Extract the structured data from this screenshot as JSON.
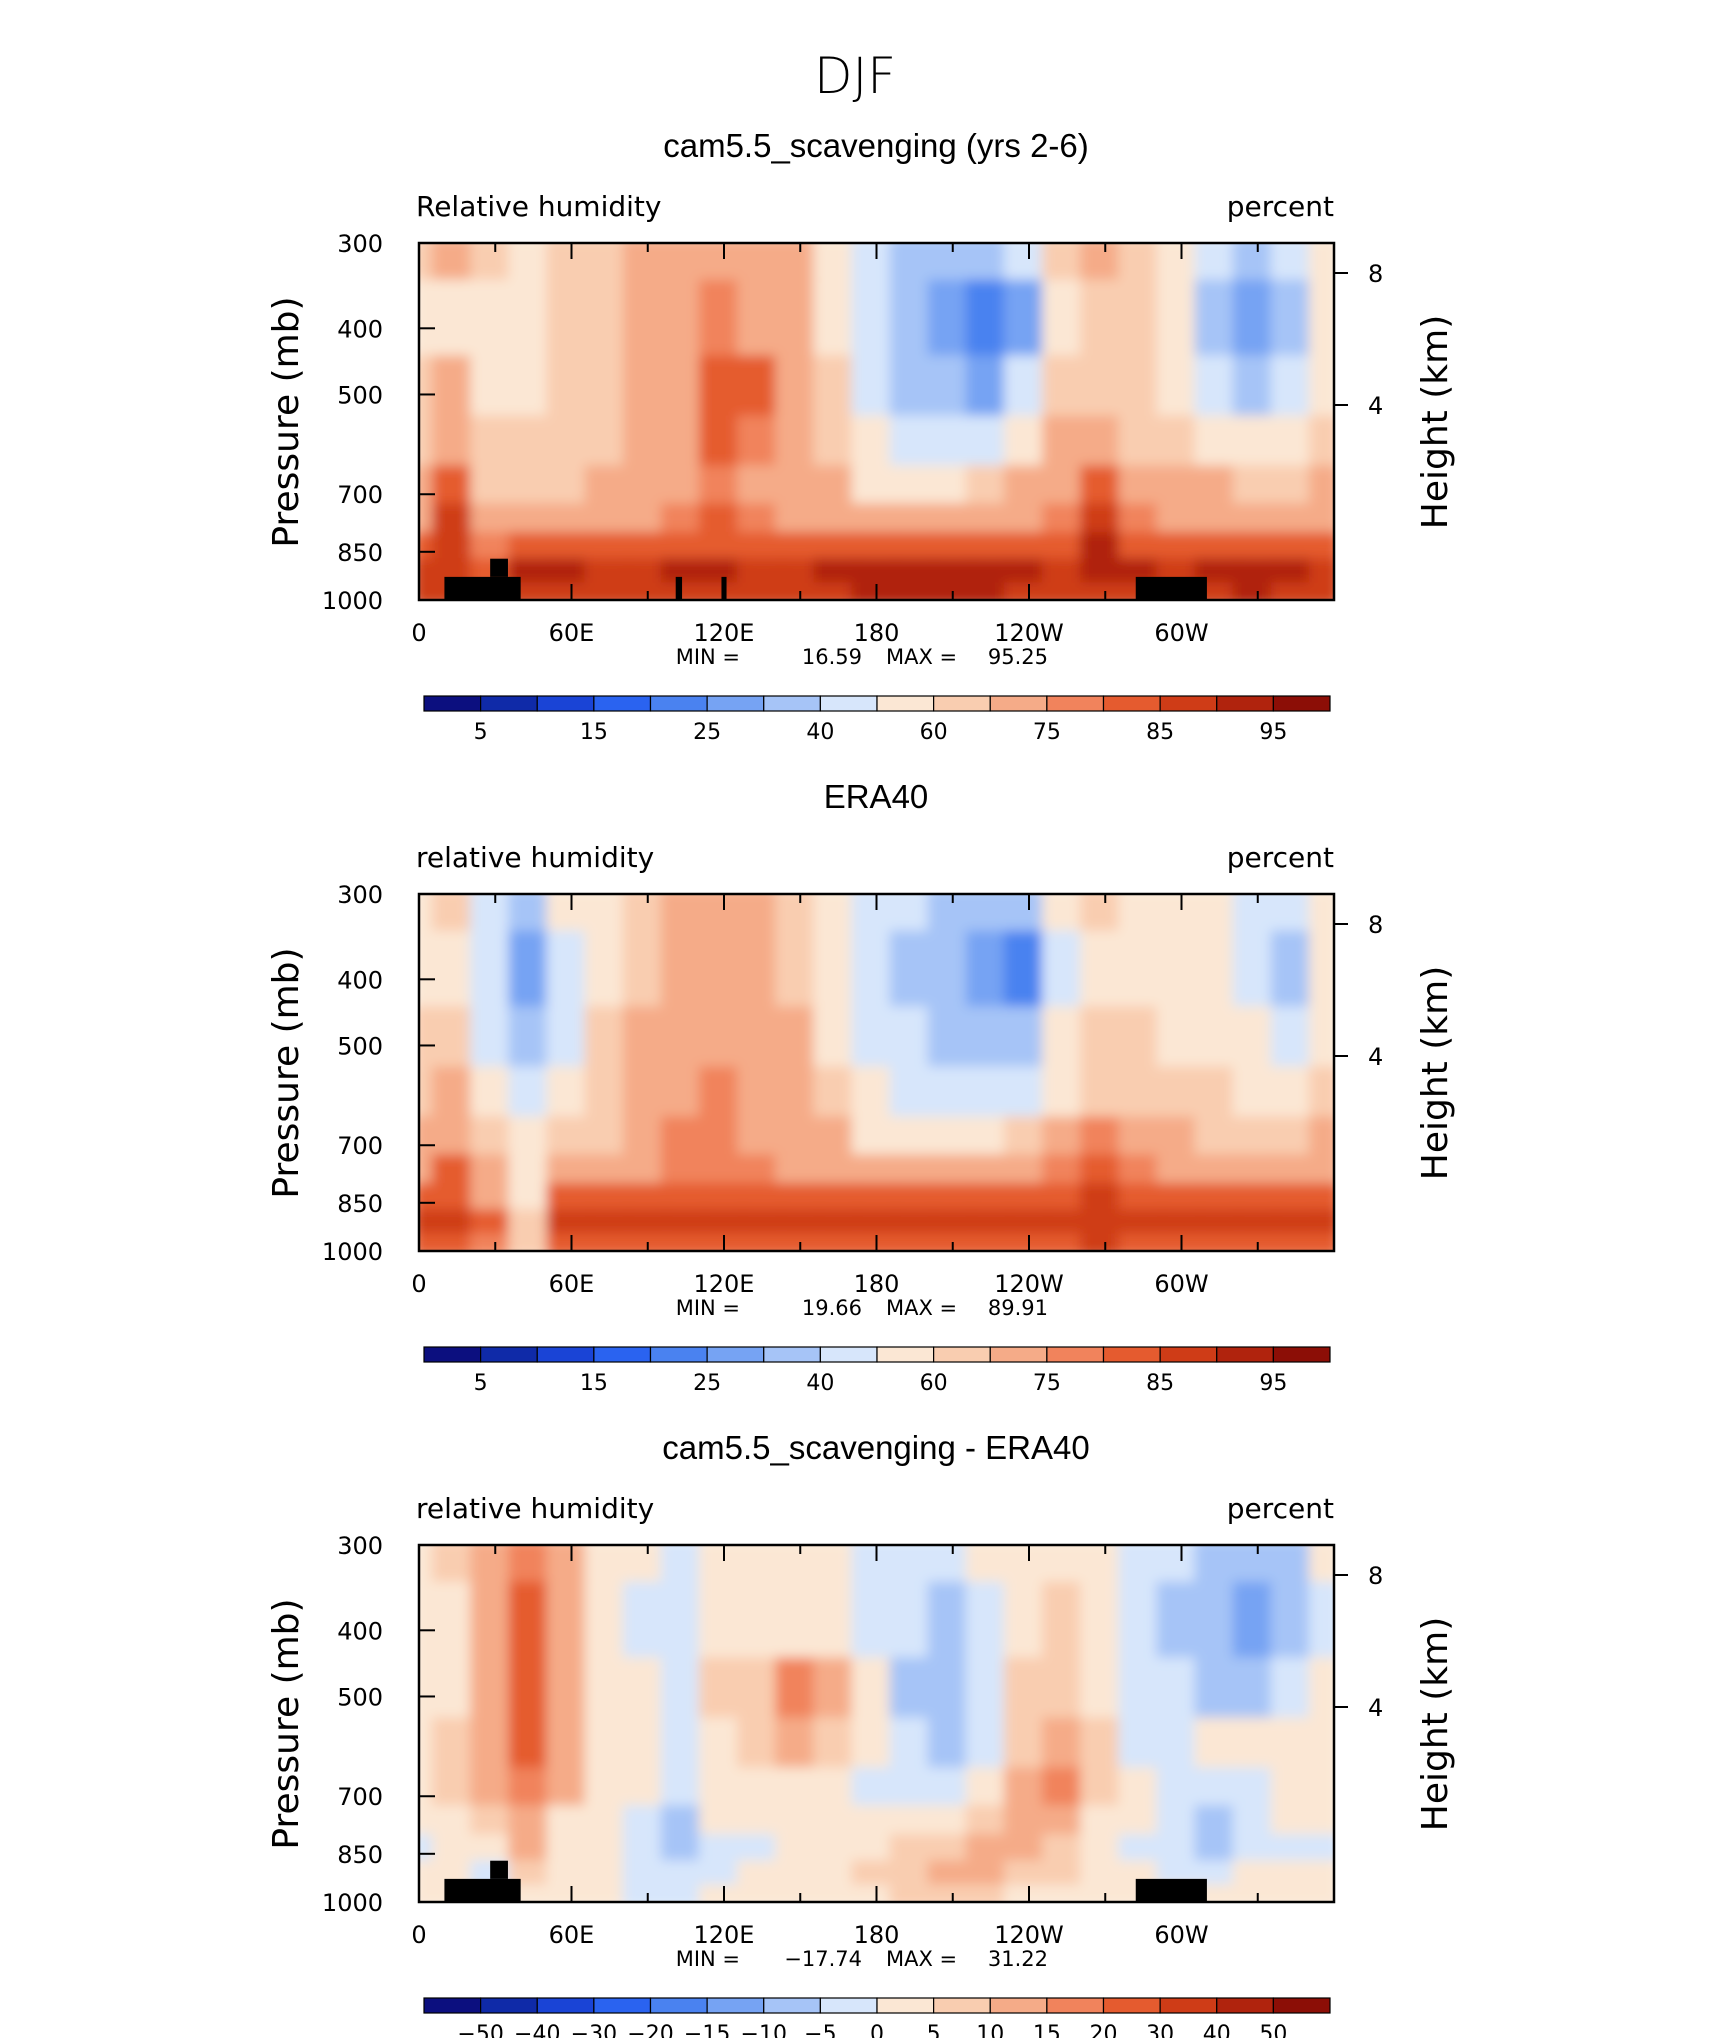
{
  "figure": {
    "title": "DJF",
    "colors": {
      "rh_levels": [
        "#0c0f7f",
        "#0f2aa8",
        "#1a44d6",
        "#2a63f0",
        "#4a82f0",
        "#76a3f3",
        "#a6c4f7",
        "#d7e6fb",
        "#fbe7d4",
        "#f9cdb0",
        "#f5ab88",
        "#f1835c",
        "#e55b2f",
        "#cf3c17",
        "#b0230d",
        "#8c0e06"
      ],
      "diff_levels": [
        "#0c0f7f",
        "#0f2aa8",
        "#1a44d6",
        "#2a63f0",
        "#4a82f0",
        "#76a3f3",
        "#a6c4f7",
        "#d7e6fb",
        "#fbe7d4",
        "#f9cdb0",
        "#f5ab88",
        "#f1835c",
        "#e55b2f",
        "#cf3c17",
        "#b0230d",
        "#8c0e06"
      ],
      "topography": "#000000"
    }
  },
  "panels": [
    {
      "title": "cam5.5_scavenging (yrs 2-6)",
      "left_label": "Relative humidity",
      "right_label": "percent",
      "y_axis_title": "Pressure (mb)",
      "right_axis_title": "Height (km)",
      "stats": {
        "min_label": "MIN =",
        "min_value": "16.59",
        "max_label": "MAX =",
        "max_value": "95.25"
      },
      "colorbar_labels": [
        "5",
        "15",
        "25",
        "40",
        "60",
        "75",
        "85",
        "95"
      ]
    },
    {
      "title": "ERA40",
      "left_label": "relative humidity",
      "right_label": "percent",
      "y_axis_title": "Pressure (mb)",
      "right_axis_title": "Height (km)",
      "stats": {
        "min_label": "MIN =",
        "min_value": "19.66",
        "max_label": "MAX =",
        "max_value": "89.91"
      },
      "colorbar_labels": [
        "5",
        "15",
        "25",
        "40",
        "60",
        "75",
        "85",
        "95"
      ]
    },
    {
      "title": "cam5.5_scavenging - ERA40",
      "left_label": "relative humidity",
      "right_label": "percent",
      "y_axis_title": "Pressure (mb)",
      "right_axis_title": "Height (km)",
      "stats": {
        "min_label": "MIN =",
        "min_value": "−17.74",
        "max_label": "MAX =",
        "max_value": "31.22"
      },
      "colorbar_labels": [
        "−50",
        "−40",
        "−30",
        "−20",
        "−15",
        "−10",
        "−5",
        "0",
        "5",
        "10",
        "15",
        "20",
        "30",
        "40",
        "50"
      ]
    }
  ],
  "chart_data": [
    {
      "type": "heatmap",
      "title": "cam5.5_scavenging (yrs 2-6)",
      "variable": "Relative humidity",
      "units": "percent",
      "x_tick_labels": [
        "0",
        "60E",
        "120E",
        "180",
        "120W",
        "60W"
      ],
      "y_tick_labels": [
        "300",
        "400",
        "500",
        "700",
        "850",
        "1000"
      ],
      "y_right_tick_labels": [
        "8",
        "4"
      ],
      "x_lon_range": [
        0,
        360
      ],
      "y_pressure_range": [
        1000,
        300
      ],
      "min": 16.59,
      "max": 95.25,
      "contour_levels": [
        5,
        10,
        15,
        20,
        25,
        30,
        40,
        50,
        60,
        65,
        75,
        80,
        85,
        90,
        95
      ],
      "x_lon": [
        0,
        15,
        30,
        45,
        60,
        75,
        90,
        105,
        120,
        135,
        150,
        165,
        180,
        195,
        210,
        225,
        240,
        255,
        270,
        285,
        300,
        315,
        330,
        345,
        360
      ],
      "y_pressure": [
        300,
        400,
        500,
        600,
        700,
        775,
        850,
        925,
        1000
      ],
      "values": [
        [
          60,
          65,
          62,
          58,
          62,
          64,
          66,
          68,
          72,
          70,
          68,
          55,
          40,
          35,
          32,
          33,
          45,
          62,
          65,
          62,
          55,
          40,
          30,
          40,
          55
        ],
        [
          55,
          58,
          50,
          55,
          60,
          64,
          66,
          68,
          75,
          72,
          68,
          55,
          42,
          35,
          27,
          23,
          28,
          55,
          62,
          60,
          50,
          33,
          25,
          35,
          50
        ],
        [
          62,
          66,
          58,
          58,
          62,
          64,
          66,
          70,
          80,
          80,
          72,
          60,
          45,
          35,
          30,
          28,
          40,
          60,
          64,
          62,
          55,
          40,
          35,
          45,
          58
        ],
        [
          64,
          70,
          62,
          60,
          62,
          64,
          66,
          72,
          80,
          78,
          74,
          62,
          50,
          42,
          40,
          42,
          55,
          66,
          66,
          64,
          62,
          55,
          50,
          55,
          62
        ],
        [
          68,
          82,
          62,
          62,
          63,
          65,
          66,
          74,
          78,
          74,
          70,
          65,
          58,
          55,
          55,
          60,
          66,
          74,
          82,
          72,
          68,
          65,
          62,
          62,
          66
        ],
        [
          74,
          86,
          66,
          70,
          72,
          72,
          72,
          76,
          80,
          76,
          74,
          70,
          66,
          65,
          66,
          70,
          74,
          78,
          88,
          78,
          74,
          72,
          70,
          70,
          74
        ],
        [
          82,
          86,
          75,
          82,
          82,
          80,
          80,
          84,
          84,
          80,
          80,
          80,
          80,
          80,
          80,
          82,
          82,
          84,
          90,
          84,
          82,
          80,
          80,
          80,
          82
        ],
        [
          88,
          88,
          82,
          90,
          90,
          88,
          88,
          90,
          90,
          88,
          88,
          90,
          92,
          92,
          92,
          92,
          90,
          88,
          92,
          90,
          88,
          90,
          92,
          90,
          88
        ],
        [
          86,
          86,
          80,
          88,
          88,
          88,
          88,
          88,
          88,
          88,
          88,
          88,
          90,
          90,
          90,
          90,
          88,
          86,
          88,
          88,
          86,
          88,
          90,
          88,
          86
        ]
      ]
    },
    {
      "type": "heatmap",
      "title": "ERA40",
      "variable": "relative humidity",
      "units": "percent",
      "x_tick_labels": [
        "0",
        "60E",
        "120E",
        "180",
        "120W",
        "60W"
      ],
      "y_tick_labels": [
        "300",
        "400",
        "500",
        "700",
        "850",
        "1000"
      ],
      "y_right_tick_labels": [
        "8",
        "4"
      ],
      "x_lon_range": [
        0,
        360
      ],
      "y_pressure_range": [
        1000,
        300
      ],
      "min": 19.66,
      "max": 89.91,
      "contour_levels": [
        5,
        10,
        15,
        20,
        25,
        30,
        40,
        50,
        60,
        65,
        75,
        80,
        85,
        90,
        95
      ],
      "x_lon": [
        0,
        15,
        30,
        45,
        60,
        75,
        90,
        105,
        120,
        135,
        150,
        165,
        180,
        195,
        210,
        225,
        240,
        255,
        270,
        285,
        300,
        315,
        330,
        345,
        360
      ],
      "y_pressure": [
        300,
        400,
        500,
        600,
        700,
        775,
        850,
        925,
        1000
      ],
      "values": [
        [
          58,
          60,
          45,
          38,
          50,
          58,
          64,
          66,
          66,
          66,
          64,
          55,
          42,
          40,
          38,
          32,
          30,
          50,
          60,
          58,
          55,
          52,
          45,
          40,
          55
        ],
        [
          55,
          58,
          40,
          28,
          45,
          58,
          64,
          66,
          66,
          66,
          64,
          52,
          40,
          35,
          30,
          25,
          22,
          45,
          58,
          56,
          55,
          50,
          42,
          38,
          52
        ],
        [
          60,
          62,
          45,
          30,
          48,
          60,
          66,
          72,
          72,
          72,
          66,
          58,
          44,
          40,
          36,
          30,
          30,
          50,
          62,
          60,
          58,
          55,
          50,
          45,
          58
        ],
        [
          62,
          66,
          56,
          48,
          55,
          62,
          66,
          74,
          76,
          74,
          68,
          62,
          50,
          45,
          42,
          40,
          45,
          56,
          64,
          62,
          60,
          60,
          58,
          55,
          60
        ],
        [
          66,
          74,
          64,
          52,
          62,
          64,
          66,
          76,
          76,
          74,
          70,
          66,
          58,
          55,
          52,
          55,
          60,
          66,
          78,
          68,
          66,
          64,
          62,
          62,
          66
        ],
        [
          74,
          80,
          70,
          55,
          72,
          74,
          74,
          78,
          78,
          76,
          74,
          72,
          68,
          66,
          66,
          68,
          72,
          76,
          84,
          76,
          74,
          72,
          70,
          70,
          74
        ],
        [
          80,
          84,
          74,
          58,
          82,
          82,
          82,
          84,
          84,
          82,
          82,
          82,
          80,
          80,
          80,
          80,
          82,
          84,
          88,
          84,
          84,
          82,
          80,
          80,
          82
        ],
        [
          86,
          86,
          80,
          62,
          86,
          88,
          88,
          88,
          88,
          88,
          88,
          88,
          88,
          86,
          86,
          86,
          86,
          86,
          88,
          86,
          86,
          86,
          86,
          86,
          86
        ],
        [
          84,
          84,
          78,
          60,
          84,
          84,
          84,
          84,
          84,
          84,
          84,
          84,
          84,
          82,
          82,
          84,
          84,
          84,
          86,
          84,
          84,
          84,
          84,
          84,
          84
        ]
      ]
    },
    {
      "type": "heatmap",
      "title": "cam5.5_scavenging - ERA40",
      "variable": "relative humidity",
      "units": "percent",
      "x_tick_labels": [
        "0",
        "60E",
        "120E",
        "180",
        "120W",
        "60W"
      ],
      "y_tick_labels": [
        "300",
        "400",
        "500",
        "700",
        "850",
        "1000"
      ],
      "y_right_tick_labels": [
        "8",
        "4"
      ],
      "x_lon_range": [
        0,
        360
      ],
      "y_pressure_range": [
        1000,
        300
      ],
      "min": -17.74,
      "max": 31.22,
      "contour_levels": [
        -50,
        -40,
        -30,
        -20,
        -15,
        -10,
        -5,
        0,
        5,
        10,
        15,
        20,
        30,
        40,
        50
      ],
      "x_lon": [
        0,
        15,
        30,
        45,
        60,
        75,
        90,
        105,
        120,
        135,
        150,
        165,
        180,
        195,
        210,
        225,
        240,
        255,
        270,
        285,
        300,
        315,
        330,
        345,
        360
      ],
      "y_pressure": [
        300,
        400,
        500,
        600,
        700,
        775,
        850,
        925,
        1000
      ],
      "values": [
        [
          2,
          5,
          12,
          18,
          10,
          3,
          0,
          -2,
          2,
          0,
          2,
          0,
          -4,
          -3,
          -2,
          0,
          2,
          4,
          3,
          -2,
          -5,
          -8,
          -10,
          -6,
          0
        ],
        [
          0,
          2,
          10,
          22,
          12,
          2,
          -2,
          -4,
          2,
          0,
          3,
          2,
          -2,
          -4,
          -6,
          -2,
          3,
          6,
          4,
          -4,
          -6,
          -10,
          -14,
          -8,
          -2
        ],
        [
          2,
          4,
          12,
          22,
          14,
          4,
          2,
          -2,
          5,
          6,
          18,
          12,
          0,
          -6,
          -8,
          -3,
          5,
          8,
          4,
          -3,
          -4,
          -6,
          -8,
          -5,
          2
        ],
        [
          4,
          6,
          10,
          20,
          12,
          4,
          2,
          -4,
          4,
          5,
          10,
          8,
          0,
          -5,
          -8,
          -2,
          8,
          10,
          5,
          -2,
          -3,
          0,
          2,
          2,
          4
        ],
        [
          2,
          8,
          10,
          18,
          10,
          3,
          0,
          -5,
          2,
          4,
          4,
          2,
          -2,
          -4,
          -3,
          4,
          12,
          16,
          6,
          2,
          -2,
          -4,
          -3,
          0,
          2
        ],
        [
          0,
          4,
          8,
          14,
          4,
          2,
          -2,
          -6,
          2,
          2,
          2,
          2,
          2,
          3,
          4,
          6,
          10,
          12,
          4,
          0,
          -4,
          -8,
          -4,
          0,
          0
        ],
        [
          -2,
          2,
          4,
          10,
          2,
          0,
          -4,
          -6,
          -2,
          -2,
          0,
          2,
          4,
          6,
          8,
          10,
          10,
          8,
          2,
          -2,
          -5,
          -6,
          -3,
          -2,
          -2
        ],
        [
          0,
          2,
          -2,
          6,
          2,
          0,
          -4,
          -4,
          -2,
          0,
          2,
          4,
          6,
          8,
          10,
          10,
          8,
          6,
          2,
          0,
          -2,
          -2,
          0,
          0,
          0
        ],
        [
          0,
          2,
          -2,
          4,
          0,
          0,
          -2,
          -2,
          0,
          0,
          2,
          4,
          4,
          6,
          6,
          6,
          4,
          4,
          2,
          0,
          0,
          0,
          0,
          0,
          0
        ]
      ]
    }
  ]
}
